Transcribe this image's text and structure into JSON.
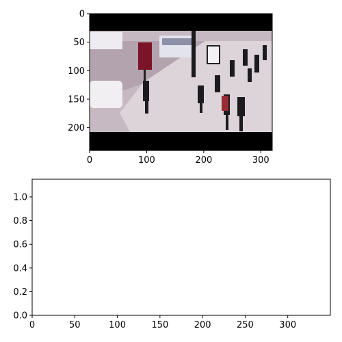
{
  "chart_data": [
    {
      "type": "image",
      "title": "",
      "xlabel": "",
      "ylabel": "",
      "xlim": [
        0,
        320
      ],
      "ylim": [
        240,
        0
      ],
      "x_ticks": [
        0,
        100,
        200,
        300
      ],
      "y_ticks": [
        0,
        50,
        100,
        150,
        200
      ],
      "image": {
        "description": "street scene video frame with buses, a car and pedestrians on a sidewalk, letterboxed with black bars top and bottom",
        "letterbox_color": "#000000",
        "road_color": "#b9a9b4",
        "sidewalk_color": "#d9d0d6",
        "bus_color": "#e8e6ec",
        "sign_color": "#7a1426"
      }
    },
    {
      "type": "scatter",
      "title": "",
      "xlabel": "",
      "ylabel": "",
      "xlim": [
        0,
        350
      ],
      "ylim": [
        0,
        1.15
      ],
      "x_ticks": [
        0,
        50,
        100,
        150,
        200,
        250,
        300
      ],
      "y_ticks": [
        0.0,
        0.2,
        0.4,
        0.6,
        0.8,
        1.0
      ],
      "series": []
    }
  ]
}
